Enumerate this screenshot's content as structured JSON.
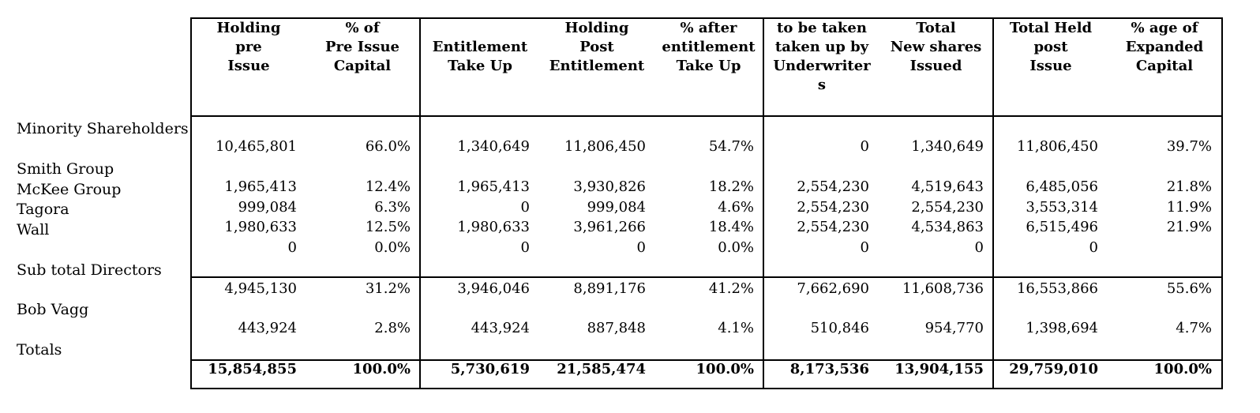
{
  "columns": [
    {
      "key": "holding_pre_issue",
      "label": "Holding\npre\nIssue"
    },
    {
      "key": "pct_pre_issue_capital",
      "label": "% of\nPre Issue\nCapital"
    },
    {
      "key": "entitlement_take_up",
      "label": "Entitlement\nTake Up"
    },
    {
      "key": "holding_post_entitlement",
      "label": "Holding\nPost\nEntitlement"
    },
    {
      "key": "pct_after_entitlement",
      "label": "% after\nentitlement\nTake Up"
    },
    {
      "key": "taken_up_by_underwriters",
      "label": "to be taken\ntaken up by\nUnderwriter\ns"
    },
    {
      "key": "total_new_shares",
      "label": "Total\nNew shares\nIssued"
    },
    {
      "key": "total_held_post_issue",
      "label": "Total Held\npost\nIssue"
    },
    {
      "key": "pct_expanded_capital",
      "label": "% age of\nExpanded\nCapital"
    }
  ],
  "row_labels": {
    "minority": "Minority Shareholders",
    "smith": "Smith Group",
    "mckee": "McKee Group",
    "tagora": "Tagora",
    "wall": "Wall",
    "subtotal": "Sub total Directors",
    "bob": "Bob Vagg",
    "totals": "Totals"
  },
  "rows": [
    {
      "name": "minority",
      "values": [
        "10,465,801",
        "66.0%",
        "1,340,649",
        "11,806,450",
        "54.7%",
        "0",
        "1,340,649",
        "11,806,450",
        "39.7%"
      ]
    },
    {
      "name": "r1",
      "values": [
        "1,965,413",
        "12.4%",
        "1,965,413",
        "3,930,826",
        "18.2%",
        "2,554,230",
        "4,519,643",
        "6,485,056",
        "21.8%"
      ]
    },
    {
      "name": "r2",
      "values": [
        "999,084",
        "6.3%",
        "0",
        "999,084",
        "4.6%",
        "2,554,230",
        "2,554,230",
        "3,553,314",
        "11.9%"
      ]
    },
    {
      "name": "r3",
      "values": [
        "1,980,633",
        "12.5%",
        "1,980,633",
        "3,961,266",
        "18.4%",
        "2,554,230",
        "4,534,863",
        "6,515,496",
        "21.9%"
      ]
    },
    {
      "name": "r4",
      "values": [
        "0",
        "0.0%",
        "0",
        "0",
        "0.0%",
        "0",
        "0",
        "0",
        ""
      ]
    },
    {
      "name": "subtotal",
      "values": [
        "4,945,130",
        "31.2%",
        "3,946,046",
        "8,891,176",
        "41.2%",
        "7,662,690",
        "11,608,736",
        "16,553,866",
        "55.6%"
      ]
    },
    {
      "name": "bob",
      "values": [
        "443,924",
        "2.8%",
        "443,924",
        "887,848",
        "4.1%",
        "510,846",
        "954,770",
        "1,398,694",
        "4.7%"
      ]
    },
    {
      "name": "totals",
      "values": [
        "15,854,855",
        "100.0%",
        "5,730,619",
        "21,585,474",
        "100.0%",
        "8,173,536",
        "13,904,155",
        "29,759,010",
        "100.0%"
      ]
    }
  ]
}
